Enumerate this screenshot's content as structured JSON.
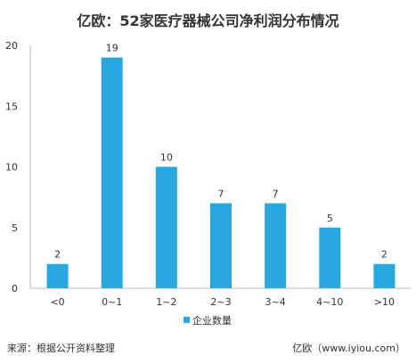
{
  "chart_data": {
    "type": "bar",
    "title": "亿欧：52家医疗器械公司净利润分布情况",
    "categories": [
      "<0",
      "0~1",
      "1~2",
      "2~3",
      "3~4",
      "4~10",
      ">10"
    ],
    "series": [
      {
        "name": "企业数量",
        "values": [
          2,
          19,
          10,
          7,
          7,
          5,
          2
        ]
      }
    ],
    "ylim": [
      0,
      20
    ],
    "yticks": [
      0,
      5,
      10,
      15,
      20
    ],
    "grid": false,
    "legend_position": "bottom",
    "bar_color": "#29A8E0"
  },
  "footer": {
    "source": "来源：根据公开资料整理",
    "credit": "亿欧（www.iyiou.com）"
  }
}
